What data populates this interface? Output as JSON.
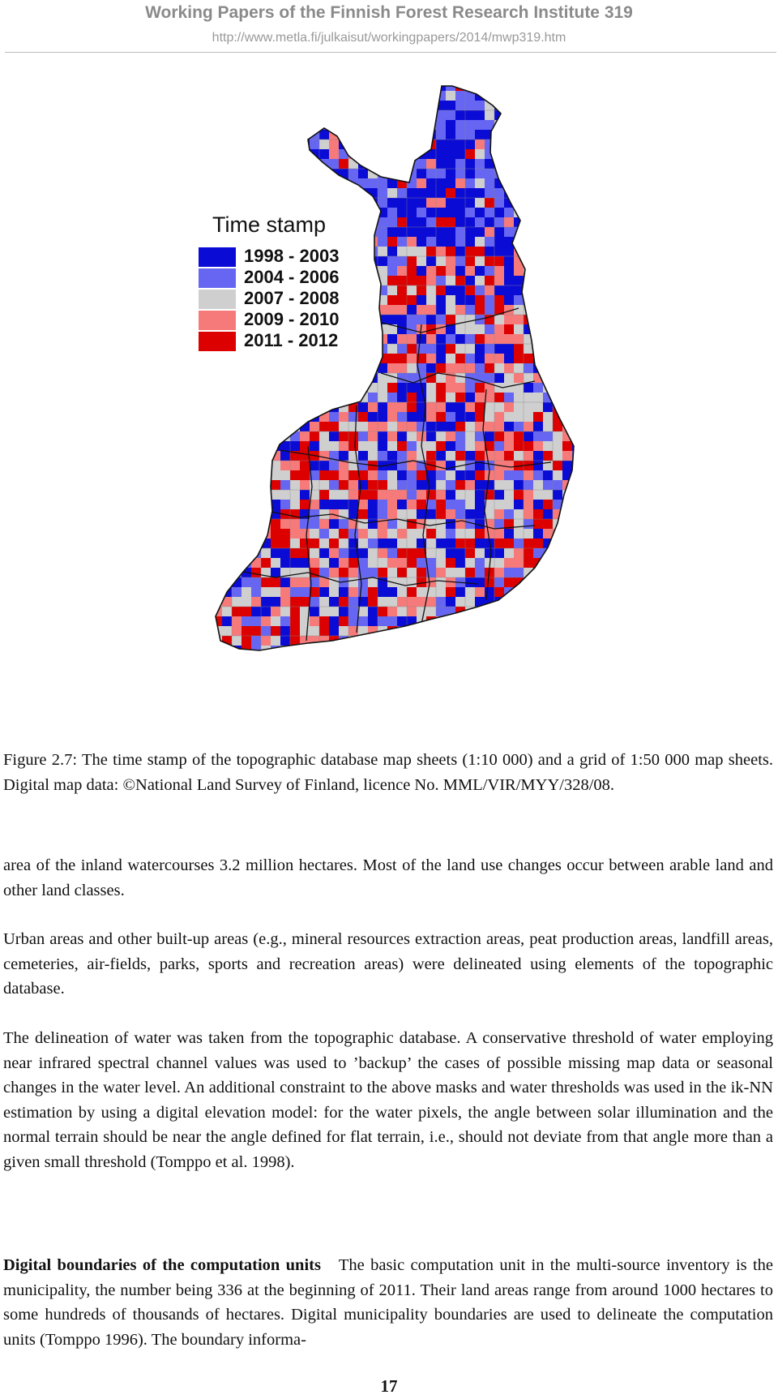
{
  "header": {
    "title": "Working Papers of the Finnish Forest Research Institute 319",
    "url": "http://www.metla.fi/julkaisut/workingpapers/2014/mwp319.htm"
  },
  "figure": {
    "legend": {
      "title": "Time stamp",
      "items": [
        {
          "label": "1998 - 2003",
          "color": "#0b0bd6"
        },
        {
          "label": "2004 - 2006",
          "color": "#6666f2"
        },
        {
          "label": "2007 - 2008",
          "color": "#cfcfcf"
        },
        {
          "label": "2009 - 2010",
          "color": "#f77a7a"
        },
        {
          "label": "2011 - 2012",
          "color": "#dc0000"
        }
      ]
    },
    "caption": "Figure 2.7: The time stamp of the topographic database map sheets (1:10 000) and a grid of 1:50 000 map sheets. Digital map data: ©National Land Survey of Finland, licence No. MML/VIR/MYY/328/08."
  },
  "body": {
    "p1": "area of the inland watercourses 3.2 million hectares. Most of the land use changes occur between arable land and other land classes.",
    "p2": "Urban areas and other built-up areas (e.g., mineral resources extraction areas, peat production areas, landfill areas, cemeteries, air-fields, parks, sports and recreation areas) were delineated using elements of the topographic database.",
    "p3": "The delineation of water was taken from the topographic database. A conservative threshold of water employing near infrared spectral channel values was used to ’backup’ the cases of possible missing map data or seasonal changes in the water level. An additional constraint to the above masks and water thresholds was used in the ik-NN estimation by using a digital elevation model: for the water pixels, the angle between solar illumination and the normal terrain should be near the angle defined for flat terrain, i.e., should not deviate from that angle more than a given small threshold (Tomppo et al. 1998).",
    "p4_heading": "Digital boundaries of the computation units",
    "p4_text": "The basic computation unit in the multi-source inventory is the municipality, the number being 336 at the beginning of 2011. Their land areas range from around 1000 hectares to some hundreds of thousands of hectares. Digital municipality boundaries are used to delineate the computation units (Tomppo 1996). The boundary informa-"
  },
  "page_number": "17"
}
